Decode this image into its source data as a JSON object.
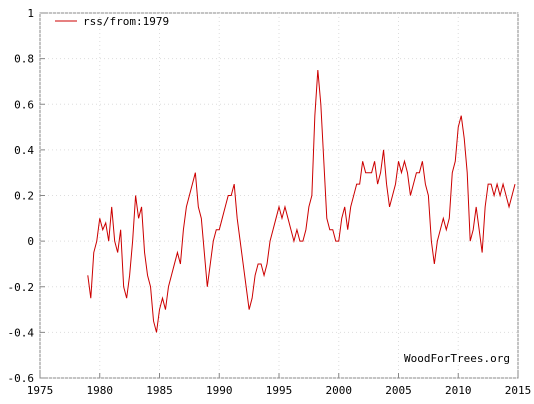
{
  "chart_data": {
    "type": "line",
    "annotation": "WoodForTrees.org",
    "legend": "top-left",
    "grid": true,
    "xlim": [
      1975,
      2015
    ],
    "xticks": [
      1975,
      1980,
      1985,
      1990,
      1995,
      2000,
      2005,
      2010,
      2015
    ],
    "ylim": [
      -0.6,
      1
    ],
    "yticks": [
      -0.6,
      -0.4,
      -0.2,
      0,
      0.2,
      0.4,
      0.6,
      0.8,
      1
    ],
    "x": [
      1979,
      1979.25,
      1979.5,
      1979.75,
      1980,
      1980.25,
      1980.5,
      1980.75,
      1981,
      1981.25,
      1981.5,
      1981.75,
      1982,
      1982.25,
      1982.5,
      1982.75,
      1983,
      1983.25,
      1983.5,
      1983.75,
      1984,
      1984.25,
      1984.5,
      1984.75,
      1985,
      1985.25,
      1985.5,
      1985.75,
      1986,
      1986.25,
      1986.5,
      1986.75,
      1987,
      1987.25,
      1987.5,
      1987.75,
      1988,
      1988.25,
      1988.5,
      1988.75,
      1989,
      1989.25,
      1989.5,
      1989.75,
      1990,
      1990.25,
      1990.5,
      1990.75,
      1991,
      1991.25,
      1991.5,
      1991.75,
      1992,
      1992.25,
      1992.5,
      1992.75,
      1993,
      1993.25,
      1993.5,
      1993.75,
      1994,
      1994.25,
      1994.5,
      1994.75,
      1995,
      1995.25,
      1995.5,
      1995.75,
      1996,
      1996.25,
      1996.5,
      1996.75,
      1997,
      1997.25,
      1997.5,
      1997.75,
      1998,
      1998.25,
      1998.5,
      1998.75,
      1999,
      1999.25,
      1999.5,
      1999.75,
      2000,
      2000.25,
      2000.5,
      2000.75,
      2001,
      2001.25,
      2001.5,
      2001.75,
      2002,
      2002.25,
      2002.5,
      2002.75,
      2003,
      2003.25,
      2003.5,
      2003.75,
      2004,
      2004.25,
      2004.5,
      2004.75,
      2005,
      2005.25,
      2005.5,
      2005.75,
      2006,
      2006.25,
      2006.5,
      2006.75,
      2007,
      2007.25,
      2007.5,
      2007.75,
      2008,
      2008.25,
      2008.5,
      2008.75,
      2009,
      2009.25,
      2009.5,
      2009.75,
      2010,
      2010.25,
      2010.5,
      2010.75,
      2011,
      2011.25,
      2011.5,
      2011.75,
      2012,
      2012.25,
      2012.5,
      2012.75,
      2013,
      2013.25,
      2013.5,
      2013.75,
      2014,
      2014.25,
      2014.5,
      2014.75
    ],
    "series": [
      {
        "name": "rss/from:1979",
        "color": "#cc0000",
        "values": [
          -0.15,
          -0.25,
          -0.05,
          0.0,
          0.1,
          0.05,
          0.08,
          0.0,
          0.15,
          0.0,
          -0.05,
          0.05,
          -0.2,
          -0.25,
          -0.15,
          0.0,
          0.2,
          0.1,
          0.15,
          -0.05,
          -0.15,
          -0.2,
          -0.35,
          -0.4,
          -0.3,
          -0.25,
          -0.3,
          -0.2,
          -0.15,
          -0.1,
          -0.05,
          -0.1,
          0.05,
          0.15,
          0.2,
          0.25,
          0.3,
          0.15,
          0.1,
          -0.05,
          -0.2,
          -0.1,
          0.0,
          0.05,
          0.05,
          0.1,
          0.15,
          0.2,
          0.2,
          0.25,
          0.1,
          0.0,
          -0.1,
          -0.2,
          -0.3,
          -0.25,
          -0.15,
          -0.1,
          -0.1,
          -0.15,
          -0.1,
          0.0,
          0.05,
          0.1,
          0.15,
          0.1,
          0.15,
          0.1,
          0.05,
          0.0,
          0.05,
          0.0,
          0.0,
          0.05,
          0.15,
          0.2,
          0.55,
          0.75,
          0.6,
          0.35,
          0.1,
          0.05,
          0.05,
          0.0,
          0.0,
          0.1,
          0.15,
          0.05,
          0.15,
          0.2,
          0.25,
          0.25,
          0.35,
          0.3,
          0.3,
          0.3,
          0.35,
          0.25,
          0.3,
          0.4,
          0.25,
          0.15,
          0.2,
          0.25,
          0.35,
          0.3,
          0.35,
          0.3,
          0.2,
          0.25,
          0.3,
          0.3,
          0.35,
          0.25,
          0.2,
          0.0,
          -0.1,
          0.0,
          0.05,
          0.1,
          0.05,
          0.1,
          0.3,
          0.35,
          0.5,
          0.55,
          0.45,
          0.3,
          0.0,
          0.05,
          0.15,
          0.05,
          -0.05,
          0.15,
          0.25,
          0.25,
          0.2,
          0.25,
          0.2,
          0.25,
          0.2,
          0.15,
          0.2,
          0.25
        ]
      }
    ]
  }
}
